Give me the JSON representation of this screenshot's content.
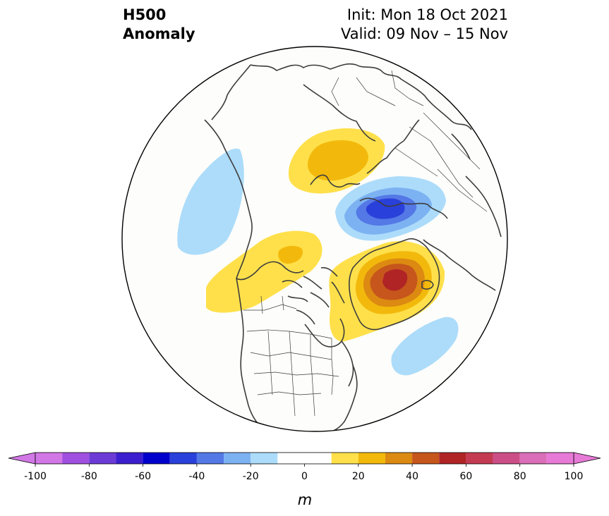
{
  "title": {
    "left_line1": "H500",
    "left_line2": "Anomaly",
    "right_line1": "Init: Mon 18 Oct 2021",
    "right_line2": "Valid: 09 Nov – 15 Nov"
  },
  "colorbar": {
    "unit": "m",
    "ticks": [
      "-100",
      "-80",
      "-60",
      "-40",
      "-20",
      "0",
      "20",
      "40",
      "60",
      "80",
      "100"
    ],
    "bins": [
      {
        "from": -100,
        "to": -90,
        "color": "#d277e6"
      },
      {
        "from": -90,
        "to": -80,
        "color": "#a050e0"
      },
      {
        "from": -80,
        "to": -70,
        "color": "#6c3bd6"
      },
      {
        "from": -70,
        "to": -60,
        "color": "#3b1fcf"
      },
      {
        "from": -60,
        "to": -50,
        "color": "#0000cd"
      },
      {
        "from": -50,
        "to": -40,
        "color": "#2a40da"
      },
      {
        "from": -40,
        "to": -30,
        "color": "#5478e6"
      },
      {
        "from": -30,
        "to": -20,
        "color": "#7cb2f2"
      },
      {
        "from": -20,
        "to": -10,
        "color": "#acdcfa"
      },
      {
        "from": -10,
        "to": 10,
        "color": "#ffffff"
      },
      {
        "from": 10,
        "to": 20,
        "color": "#ffe04a"
      },
      {
        "from": 20,
        "to": 30,
        "color": "#f2b90c"
      },
      {
        "from": 30,
        "to": 40,
        "color": "#dc8a12"
      },
      {
        "from": 40,
        "to": 50,
        "color": "#c6561c"
      },
      {
        "from": 50,
        "to": 60,
        "color": "#b02426"
      },
      {
        "from": 60,
        "to": 70,
        "color": "#c43a52"
      },
      {
        "from": 70,
        "to": 80,
        "color": "#cc4e86"
      },
      {
        "from": 80,
        "to": 90,
        "color": "#da6eb8"
      },
      {
        "from": 90,
        "to": 100,
        "color": "#e67ad6"
      }
    ],
    "under_color": "#d277e6",
    "over_color": "#e67ad6"
  },
  "map": {
    "projection": "north-polar-stereographic",
    "anomaly_features": [
      {
        "name": "positive anomaly over northern Europe / Scandinavia",
        "peak_m": 30
      },
      {
        "name": "negative anomaly over Kara Sea / western Siberia",
        "peak_m": -50
      },
      {
        "name": "positive anomaly over Greenland / Baffin Bay",
        "peak_m": 60
      },
      {
        "name": "positive anomaly over Alaska / Yukon",
        "peak_m": 20
      },
      {
        "name": "negative anomaly over North Pacific",
        "peak_m": -20
      },
      {
        "name": "negative anomaly over central North Atlantic",
        "peak_m": -20
      }
    ]
  }
}
